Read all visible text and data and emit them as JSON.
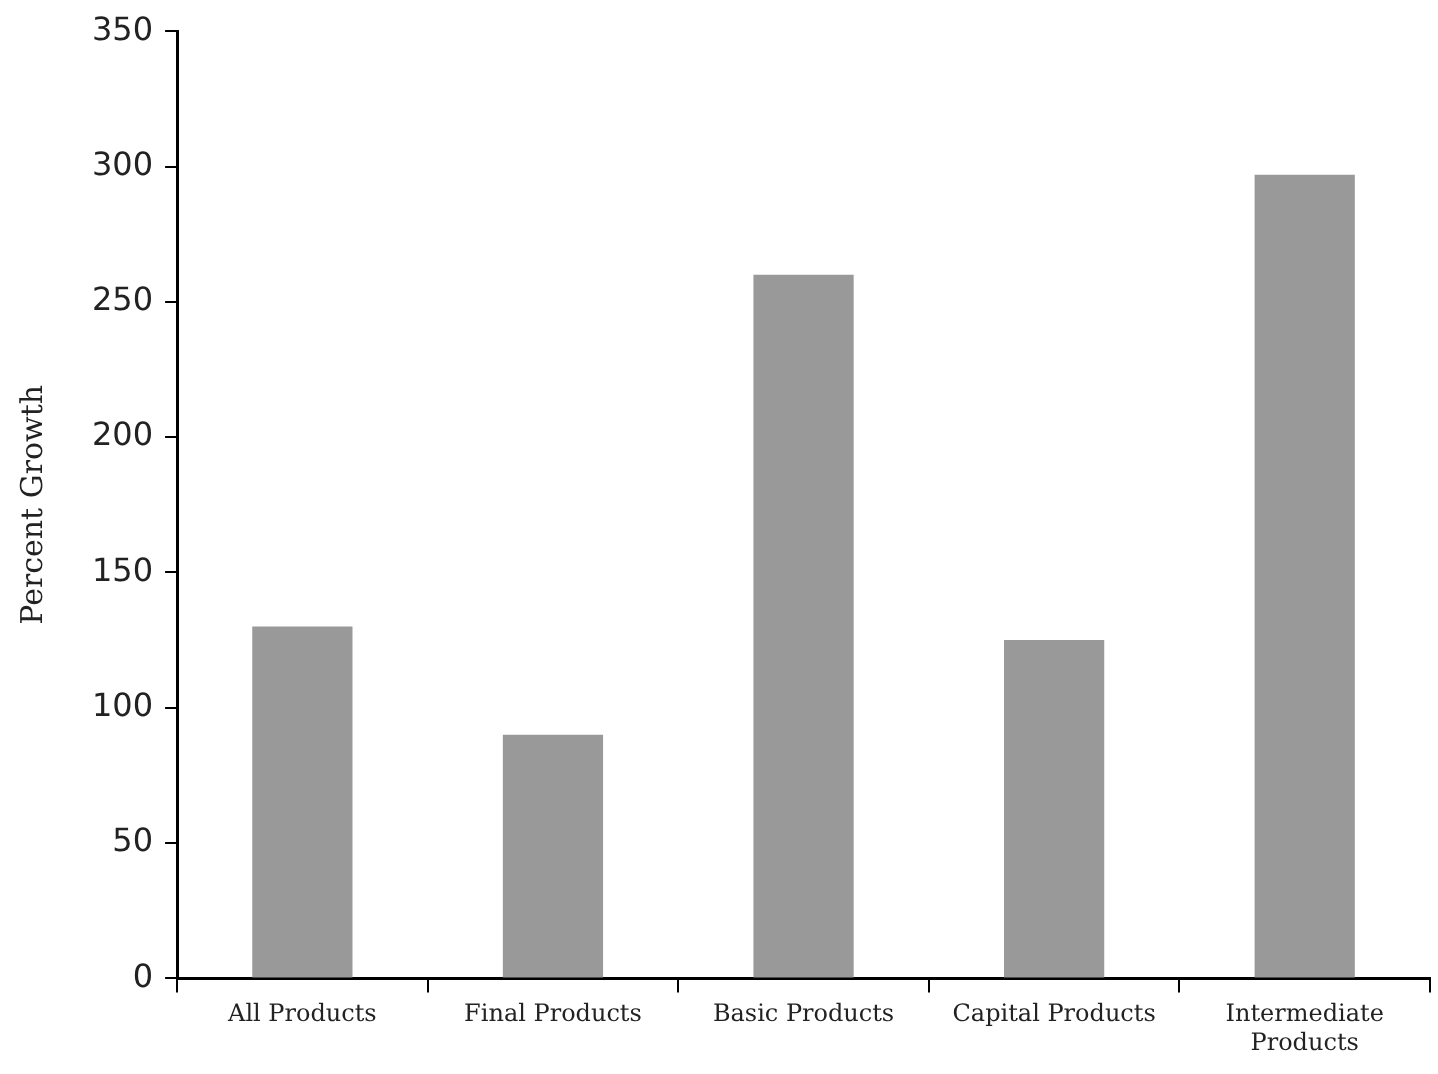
{
  "chart_data": {
    "type": "bar",
    "ylabel": "Percent Growth",
    "categories": [
      "All Products",
      "Final Products",
      "Basic Products",
      "Capital Products",
      "Intermediate Products"
    ],
    "values": [
      130,
      90,
      260,
      125,
      297
    ],
    "color": "#999999",
    "ylim": [
      0,
      350
    ],
    "yticks": [
      0,
      50,
      100,
      150,
      200,
      250,
      300,
      350
    ],
    "grid": false,
    "legend": false
  }
}
